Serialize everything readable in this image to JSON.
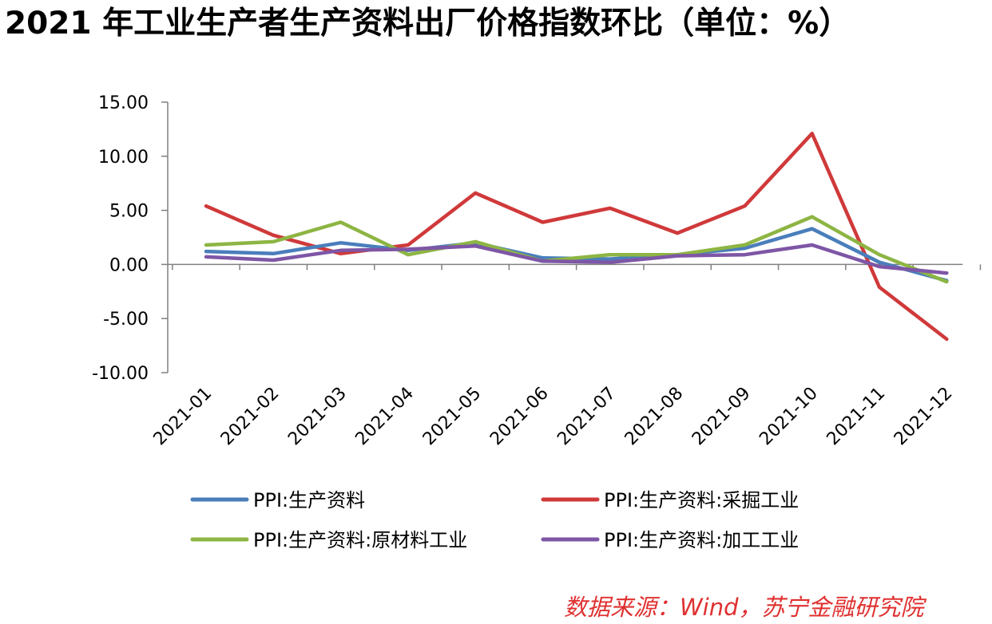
{
  "title": "2021 年工业生产者生产资料出厂价格指数环比（单位：%）",
  "source": "数据来源：Wind，苏宁金融研究院",
  "chart_data": {
    "type": "line",
    "title": "2021 年工业生产者生产资料出厂价格指数环比（单位：%）",
    "xlabel": "",
    "ylabel": "",
    "ylim": [
      -10,
      15
    ],
    "yticks": [
      "15.00",
      "10.00",
      "5.00",
      "0.00",
      "-5.00",
      "-10.00"
    ],
    "ytick_values": [
      15,
      10,
      5,
      0,
      -5,
      -10
    ],
    "categories": [
      "2021-01",
      "2021-02",
      "2021-03",
      "2021-04",
      "2021-05",
      "2021-06",
      "2021-07",
      "2021-08",
      "2021-09",
      "2021-10",
      "2021-11",
      "2021-12"
    ],
    "grid": false,
    "legend": "bottom",
    "series": [
      {
        "name": "PPI:生产资料",
        "color": "#4a7ebb",
        "values": [
          1.2,
          1.0,
          2.0,
          1.3,
          2.0,
          0.6,
          0.5,
          0.9,
          1.5,
          3.3,
          0.2,
          -1.5
        ]
      },
      {
        "name": "PPI:生产资料:采掘工业",
        "color": "#d0393a",
        "values": [
          5.4,
          2.7,
          1.0,
          1.8,
          6.6,
          3.9,
          5.2,
          2.9,
          5.4,
          12.1,
          -2.1,
          -6.9
        ]
      },
      {
        "name": "PPI:生产资料:原材料工业",
        "color": "#8db543",
        "values": [
          1.8,
          2.1,
          3.9,
          0.9,
          2.1,
          0.3,
          0.9,
          0.9,
          1.8,
          4.4,
          0.9,
          -1.6
        ]
      },
      {
        "name": "PPI:生产资料:加工工业",
        "color": "#7e56a6",
        "values": [
          0.7,
          0.4,
          1.3,
          1.4,
          1.7,
          0.3,
          0.2,
          0.8,
          0.9,
          1.8,
          -0.2,
          -0.8
        ]
      }
    ]
  }
}
